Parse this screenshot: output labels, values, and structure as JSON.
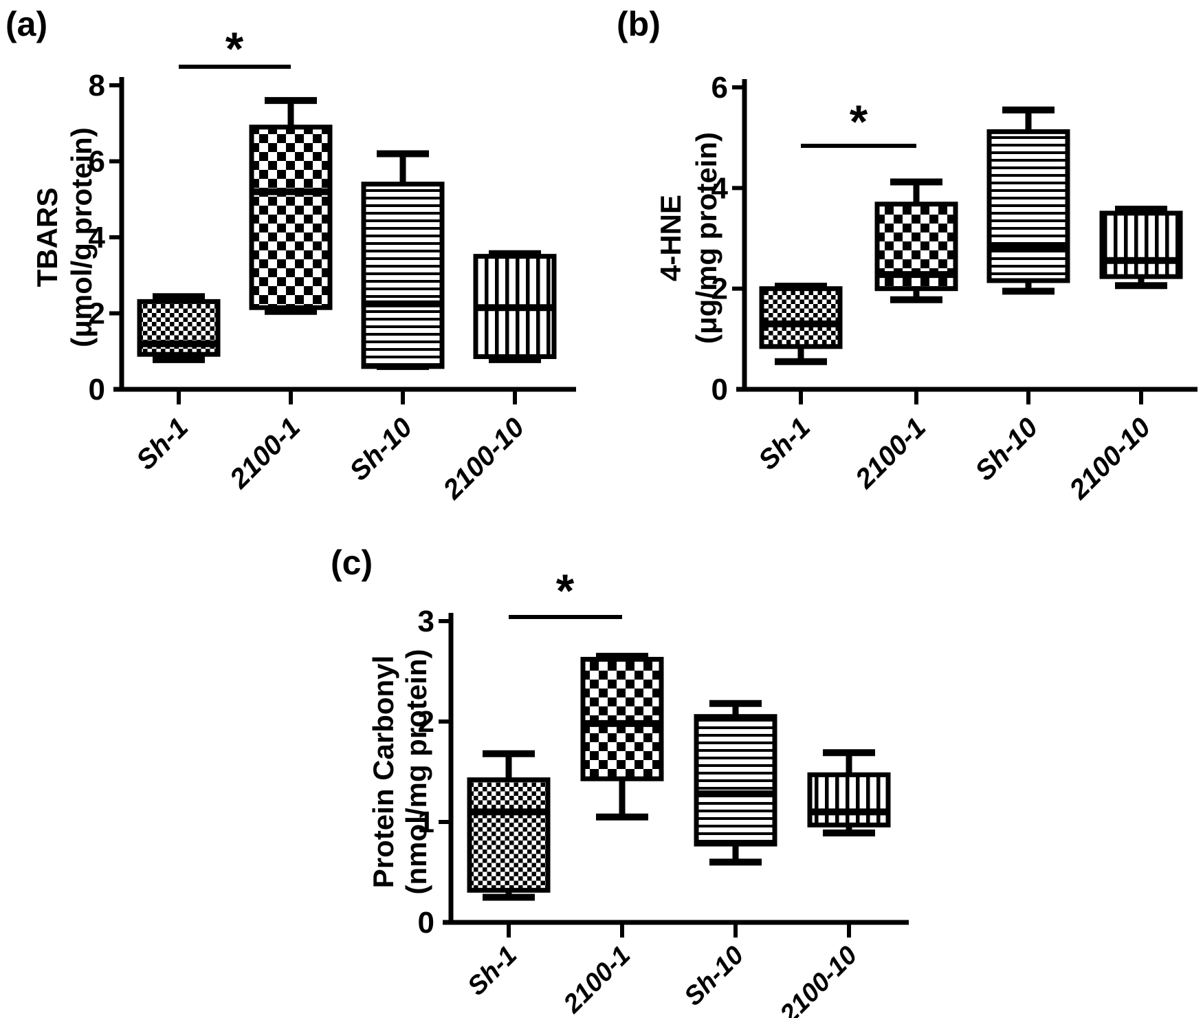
{
  "figure": {
    "background_color": "#ffffff",
    "ink_color": "#000000",
    "description": "Three box-and-whisker plots of oxidative stress markers"
  },
  "chart_data": [
    {
      "type": "box",
      "panel_letter": "(a)",
      "ylabel_lines": [
        "TBARS",
        "(μmol/g protein)"
      ],
      "ylim": [
        0,
        8
      ],
      "yticks": [
        0,
        2,
        4,
        6,
        8
      ],
      "grid": false,
      "categories": [
        "Sh-1",
        "2100-1",
        "Sh-10",
        "2100-10"
      ],
      "series": [
        {
          "label": "Sh-1",
          "pattern": "fine-checker",
          "min": 0.78,
          "q1": 0.92,
          "median": 1.2,
          "q3": 2.31,
          "max": 2.44
        },
        {
          "label": "2100-1",
          "pattern": "coarse-checker",
          "min": 2.05,
          "q1": 2.15,
          "median": 5.2,
          "q3": 6.9,
          "max": 7.6
        },
        {
          "label": "Sh-10",
          "pattern": "hlines",
          "min": 0.6,
          "q1": 0.6,
          "median": 2.25,
          "q3": 5.4,
          "max": 6.2
        },
        {
          "label": "2100-10",
          "pattern": "vlines",
          "min": 0.78,
          "q1": 0.86,
          "median": 2.15,
          "q3": 3.5,
          "max": 3.57
        }
      ],
      "significance": {
        "from": "Sh-1",
        "to": "2100-1",
        "label": "*"
      }
    },
    {
      "type": "box",
      "panel_letter": "(b)",
      "ylabel_lines": [
        "4-HNE",
        "(μg/mg protein)"
      ],
      "ylim": [
        0,
        6
      ],
      "yticks": [
        0,
        2,
        4,
        6
      ],
      "grid": false,
      "categories": [
        "Sh-1",
        "2100-1",
        "Sh-10",
        "2100-10"
      ],
      "series": [
        {
          "label": "Sh-1",
          "pattern": "fine-checker",
          "min": 0.55,
          "q1": 0.85,
          "median": 1.3,
          "q3": 2.0,
          "max": 2.05
        },
        {
          "label": "2100-1",
          "pattern": "coarse-checker",
          "min": 1.78,
          "q1": 2.0,
          "median": 2.28,
          "q3": 3.68,
          "max": 4.12
        },
        {
          "label": "Sh-10",
          "pattern": "hlines",
          "min": 1.95,
          "q1": 2.16,
          "median": 2.82,
          "q3": 5.12,
          "max": 5.55
        },
        {
          "label": "2100-10",
          "pattern": "vlines",
          "min": 2.06,
          "q1": 2.24,
          "median": 2.56,
          "q3": 3.5,
          "max": 3.58
        }
      ],
      "significance": {
        "from": "Sh-1",
        "to": "2100-1",
        "label": "*"
      }
    },
    {
      "type": "box",
      "panel_letter": "(c)",
      "ylabel_lines": [
        "Protein Carbonyl",
        "(nmol/mg protein)"
      ],
      "ylim": [
        0,
        3
      ],
      "yticks": [
        0,
        1,
        2,
        3
      ],
      "grid": false,
      "categories": [
        "Sh-1",
        "2100-1",
        "Sh-10",
        "2100-10"
      ],
      "series": [
        {
          "label": "Sh-1",
          "pattern": "fine-checker",
          "min": 0.25,
          "q1": 0.32,
          "median": 1.1,
          "q3": 1.42,
          "max": 1.68
        },
        {
          "label": "2100-1",
          "pattern": "coarse-checker",
          "min": 1.05,
          "q1": 1.43,
          "median": 1.98,
          "q3": 2.62,
          "max": 2.65
        },
        {
          "label": "Sh-10",
          "pattern": "hlines",
          "min": 0.6,
          "q1": 0.78,
          "median": 1.28,
          "q3": 2.05,
          "max": 2.18
        },
        {
          "label": "2100-10",
          "pattern": "vlines",
          "min": 0.89,
          "q1": 0.97,
          "median": 1.1,
          "q3": 1.47,
          "max": 1.69
        }
      ],
      "significance": {
        "from": "Sh-1",
        "to": "2100-1",
        "label": "*"
      }
    }
  ]
}
